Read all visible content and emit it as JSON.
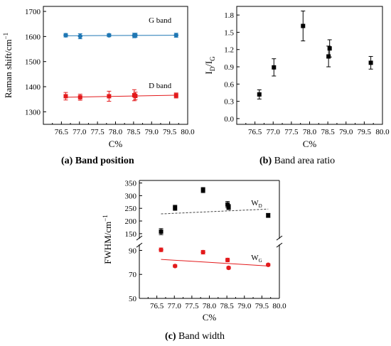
{
  "chart_data": [
    {
      "id": "a",
      "type": "scatter",
      "caption_letter": "(a)",
      "caption_text": "Band position",
      "xlabel": "C%",
      "ylabel": "Raman shift/cm",
      "ylabel_sup": "−1",
      "xlim": [
        76.0,
        80.0
      ],
      "ylim": [
        1250,
        1720
      ],
      "xticks": [
        "76.5",
        "77.0",
        "77.5",
        "78.0",
        "78.5",
        "79.0",
        "79.5",
        "80.0"
      ],
      "yticks": [
        "1300",
        "1400",
        "1500",
        "1600",
        "1700"
      ],
      "series": [
        {
          "name": "G band",
          "color": "#1f77b4",
          "marker": "circle",
          "x": [
            76.62,
            77.02,
            77.82,
            78.52,
            78.55,
            79.68
          ],
          "y": [
            1605,
            1601,
            1605,
            1604,
            1605,
            1605
          ],
          "err": [
            7,
            10,
            6,
            9,
            8,
            8
          ],
          "fit": {
            "x": [
              76.62,
              79.68
            ],
            "y": [
              1603,
              1605
            ]
          }
        },
        {
          "name": "D band",
          "color": "#e31a1c",
          "marker": "square",
          "x": [
            76.62,
            77.02,
            77.82,
            78.52,
            78.55,
            79.68
          ],
          "y": [
            1362,
            1358,
            1362,
            1366,
            1363,
            1365
          ],
          "err": [
            15,
            12,
            20,
            22,
            15,
            10
          ],
          "fit": {
            "x": [
              76.62,
              79.68
            ],
            "y": [
              1358,
              1366
            ]
          }
        }
      ],
      "series_labels": [
        {
          "text": "G band",
          "x": 79.55,
          "y": 1655
        },
        {
          "text": "D band",
          "x": 79.55,
          "y": 1395
        }
      ]
    },
    {
      "id": "b",
      "type": "scatter",
      "caption_letter": "(b)",
      "caption_text": "Band area ratio",
      "xlabel": "C%",
      "ylabel_parts": [
        "I",
        "D",
        "/I",
        "G"
      ],
      "xlim": [
        76.0,
        80.0
      ],
      "ylim": [
        -0.1,
        1.95
      ],
      "xticks": [
        "76.5",
        "77.0",
        "77.5",
        "78.0",
        "78.5",
        "79.0",
        "79.5",
        "80.0"
      ],
      "yticks": [
        "0.0",
        "0.3",
        "0.6",
        "0.9",
        "1.2",
        "1.5",
        "1.8"
      ],
      "series": [
        {
          "color": "#000000",
          "marker": "square",
          "x": [
            76.62,
            77.02,
            77.82,
            78.52,
            78.55,
            79.68
          ],
          "y": [
            0.42,
            0.89,
            1.61,
            1.08,
            1.22,
            0.97
          ],
          "err": [
            0.08,
            0.15,
            0.26,
            0.18,
            0.15,
            0.11
          ]
        }
      ]
    },
    {
      "id": "c",
      "type": "scatter",
      "caption_letter": "(c)",
      "caption_text": "Band width",
      "xlabel": "C%",
      "ylabel": "FWHM/cm",
      "ylabel_sup": "−1",
      "xlim": [
        76.0,
        80.0
      ],
      "broken_y_axis": true,
      "upper_ylim": [
        130,
        360
      ],
      "lower_ylim": [
        50,
        95
      ],
      "xticks": [
        "76.5",
        "77.0",
        "77.5",
        "78.0",
        "78.5",
        "79.0",
        "79.5",
        "80.0"
      ],
      "yticks_upper": [
        "150",
        "200",
        "250",
        "300",
        "350"
      ],
      "yticks_lower": [
        "50",
        "70",
        "90"
      ],
      "series": [
        {
          "name": "W",
          "name_sub": "D",
          "color": "#000000",
          "marker": "square",
          "panel": "upper",
          "x": [
            76.62,
            77.02,
            77.82,
            78.52,
            78.55,
            79.68
          ],
          "y": [
            158,
            252,
            322,
            265,
            255,
            222
          ],
          "err": [
            12,
            10,
            10,
            12,
            10,
            8
          ],
          "fit": {
            "x": [
              76.62,
              79.68
            ],
            "y": [
              228,
              247
            ],
            "dashed": true
          }
        },
        {
          "name": "W",
          "name_sub": "G",
          "color": "#e31a1c",
          "marker": "circle",
          "panel": "lower",
          "x": [
            76.62,
            77.02,
            77.82,
            78.52,
            78.55,
            79.68
          ],
          "y": [
            90.5,
            77,
            88.5,
            82,
            75.5,
            78
          ],
          "err": [
            1.5,
            1,
            1.5,
            1.5,
            1,
            1
          ],
          "fit": {
            "x": [
              76.62,
              79.68
            ],
            "y": [
              82.5,
              77
            ],
            "dashed": false
          }
        }
      ],
      "series_labels": [
        {
          "panel": "upper",
          "text": "W",
          "sub": "D",
          "x": 79.35,
          "y": 262
        },
        {
          "panel": "lower",
          "text": "W",
          "sub": "G",
          "x": 79.35,
          "y": 82
        }
      ]
    }
  ]
}
